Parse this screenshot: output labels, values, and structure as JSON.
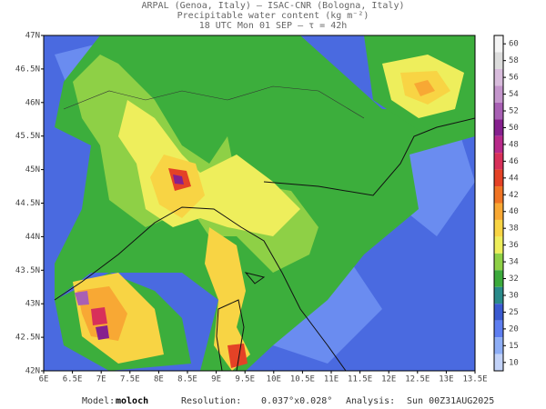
{
  "header": {
    "line1": "ARPAL (Genoa, Italy)  —  ISAC-CNR (Bologna, Italy)",
    "line2": "Precipitable water content (kg m⁻²)",
    "line3": "18 UTC Mon 01 SEP  –  τ = 42h"
  },
  "map": {
    "lat_labels": [
      "47N",
      "46.5N",
      "46N",
      "45.5N",
      "45N",
      "44.5N",
      "44N",
      "43.5N",
      "43N",
      "42.5N",
      "42N"
    ],
    "lon_labels": [
      "6E",
      "6.5E",
      "7E",
      "7.5E",
      "8E",
      "8.5E",
      "9E",
      "9.5E",
      "10E",
      "10.5E",
      "11E",
      "11.5E",
      "12E",
      "12.5E",
      "13E",
      "13.5E"
    ]
  },
  "colorbar": {
    "labels": [
      "60",
      "58",
      "56",
      "54",
      "52",
      "50",
      "48",
      "46",
      "44",
      "42",
      "40",
      "38",
      "36",
      "34",
      "32",
      "30",
      "25",
      "20",
      "15",
      "10"
    ],
    "colors": [
      "#f4f4f4",
      "#dcdcdc",
      "#d8bcdc",
      "#c496cc",
      "#a860b4",
      "#86208e",
      "#b82a8a",
      "#d8305a",
      "#e44226",
      "#f07424",
      "#f8a834",
      "#f8d444",
      "#eeee5c",
      "#8ed046",
      "#3caa3c",
      "#2a8a8a",
      "#3a5ad0",
      "#5e7ef0",
      "#8eaef6",
      "#c2d2f8"
    ]
  },
  "footer": {
    "model_label": "Model:",
    "model": "moloch",
    "res_label": "Resolution:",
    "res": "0.037°x0.028°",
    "analysis_label": "Analysis:",
    "analysis": "Sun 00Z31AUG2025"
  }
}
